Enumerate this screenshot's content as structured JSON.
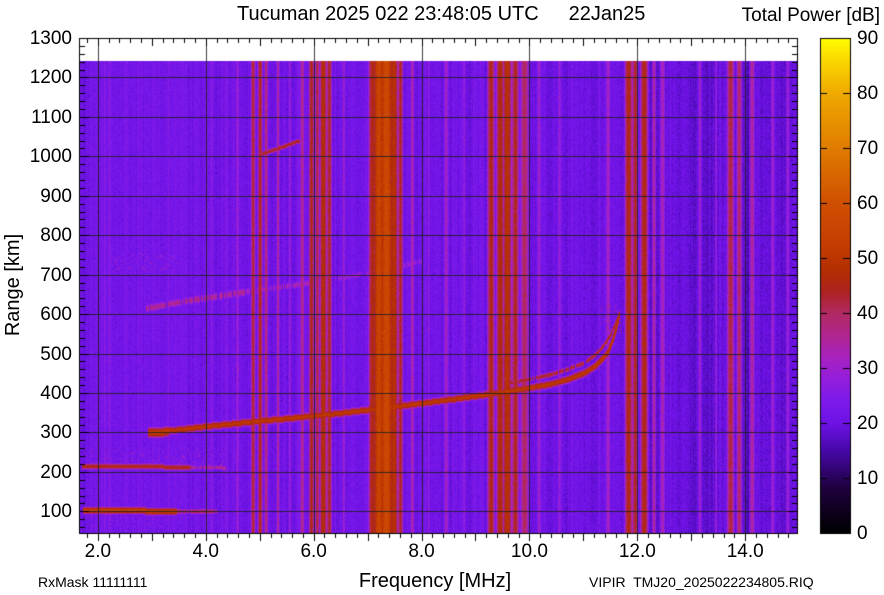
{
  "header": {
    "title": "Tucuman 2025 022 23:48:05 UTC",
    "date": "22Jan25",
    "colorbar_title": "Total Power [dB]"
  },
  "footer": {
    "rx_mask": "RxMask 11111111",
    "file_label": "VIPIR  TMJ20_2025022234805.RIQ"
  },
  "axes": {
    "x_label": "Frequency [MHz]",
    "y_label": "Range [km]"
  },
  "chart_data": {
    "type": "heatmap",
    "title": "Tucuman 2025 022 23:48:05 UTC   22Jan25",
    "xlabel": "Frequency [MHz]",
    "ylabel": "Range [km]",
    "zlabel": "Total Power [dB]",
    "x_range": [
      1.65,
      14.96
    ],
    "y_range": [
      45,
      1300
    ],
    "z_range": [
      0,
      90
    ],
    "data_top_km": 1243,
    "x_ticks": [
      {
        "label": "2.0",
        "value": 2
      },
      {
        "label": "4.0",
        "value": 4
      },
      {
        "label": "6.0",
        "value": 6
      },
      {
        "label": "8.0",
        "value": 8
      },
      {
        "label": "10.0",
        "value": 10
      },
      {
        "label": "12.0",
        "value": 12
      },
      {
        "label": "14.0",
        "value": 14
      }
    ],
    "y_ticks": [
      {
        "label": "1300",
        "value": 1300
      },
      {
        "label": "1200",
        "value": 1200
      },
      {
        "label": "1100",
        "value": 1100
      },
      {
        "label": "1000",
        "value": 1000
      },
      {
        "label": "900",
        "value": 900
      },
      {
        "label": "800",
        "value": 800
      },
      {
        "label": "700",
        "value": 700
      },
      {
        "label": "600",
        "value": 600
      },
      {
        "label": "500",
        "value": 500
      },
      {
        "label": "400",
        "value": 400
      },
      {
        "label": "300",
        "value": 300
      },
      {
        "label": "200",
        "value": 200
      },
      {
        "label": "100",
        "value": 100
      }
    ],
    "colorbar_ticks": [
      {
        "label": "90",
        "value": 90
      },
      {
        "label": "80",
        "value": 80
      },
      {
        "label": "70",
        "value": 70
      },
      {
        "label": "60",
        "value": 60
      },
      {
        "label": "50",
        "value": 50
      },
      {
        "label": "40",
        "value": 40
      },
      {
        "label": "30",
        "value": 30
      },
      {
        "label": "20",
        "value": 20
      },
      {
        "label": "10",
        "value": 10
      },
      {
        "label": "0",
        "value": 0
      }
    ],
    "x_minor_step": 0.2,
    "y_minor_step": 20,
    "colormap": [
      [
        0,
        "#000000"
      ],
      [
        8,
        "#1e013c"
      ],
      [
        15,
        "#4608a8"
      ],
      [
        20,
        "#6e12e6"
      ],
      [
        24,
        "#7d1aeb"
      ],
      [
        28,
        "#941ede"
      ],
      [
        32,
        "#a822c0"
      ],
      [
        36,
        "#b02690"
      ],
      [
        40,
        "#b22a64"
      ],
      [
        44,
        "#ad2320"
      ],
      [
        48,
        "#b43002"
      ],
      [
        52,
        "#c43c02"
      ],
      [
        60,
        "#d05002"
      ],
      [
        70,
        "#e07c00"
      ],
      [
        80,
        "#f0aa00"
      ],
      [
        86,
        "#fbd800"
      ],
      [
        90,
        "#ffff00"
      ]
    ],
    "noise": {
      "base_db": 21.4,
      "column_sigma": 0.8,
      "pixel_sigma": 1.3
    },
    "rfi_bands": [
      [
        2.12,
        0.03,
        27
      ],
      [
        2.75,
        0.02,
        26
      ],
      [
        3.3,
        0.02,
        26
      ],
      [
        4.1,
        0.025,
        28
      ],
      [
        4.58,
        0.03,
        31
      ],
      [
        4.87,
        0.03,
        44
      ],
      [
        5.0,
        0.03,
        46
      ],
      [
        5.11,
        0.025,
        40
      ],
      [
        5.33,
        0.025,
        36
      ],
      [
        5.55,
        0.02,
        31
      ],
      [
        5.78,
        0.03,
        38
      ],
      [
        5.95,
        0.035,
        46
      ],
      [
        6.06,
        0.03,
        43
      ],
      [
        6.17,
        0.045,
        49
      ],
      [
        6.28,
        0.035,
        45
      ],
      [
        6.55,
        0.02,
        32
      ],
      [
        7.08,
        0.05,
        47
      ],
      [
        7.2,
        0.07,
        56
      ],
      [
        7.34,
        0.08,
        58
      ],
      [
        7.48,
        0.05,
        50
      ],
      [
        7.6,
        0.035,
        45
      ],
      [
        7.82,
        0.03,
        35
      ],
      [
        8.12,
        0.02,
        30
      ],
      [
        8.45,
        0.03,
        33
      ],
      [
        8.78,
        0.02,
        30
      ],
      [
        9.28,
        0.05,
        46
      ],
      [
        9.45,
        0.05,
        48
      ],
      [
        9.58,
        0.055,
        50
      ],
      [
        9.73,
        0.05,
        45
      ],
      [
        9.9,
        0.06,
        41
      ],
      [
        10.17,
        0.03,
        32
      ],
      [
        10.55,
        0.03,
        30
      ],
      [
        11.45,
        0.04,
        33
      ],
      [
        11.83,
        0.05,
        47
      ],
      [
        11.95,
        0.04,
        45
      ],
      [
        12.12,
        0.05,
        47
      ],
      [
        12.3,
        0.03,
        36
      ],
      [
        12.46,
        0.04,
        34
      ],
      [
        13.15,
        0.03,
        31
      ],
      [
        13.45,
        0.02,
        30
      ],
      [
        13.72,
        0.05,
        43
      ],
      [
        13.88,
        0.04,
        40
      ],
      [
        14.12,
        0.04,
        36
      ],
      [
        14.5,
        0.03,
        32
      ],
      [
        14.78,
        0.03,
        31
      ]
    ],
    "traces": [
      {
        "name": "E-region echo",
        "db": 53,
        "half": 2.2,
        "gap": 0,
        "points": [
          [
            1.73,
            104
          ],
          [
            2.3,
            103
          ],
          [
            2.9,
            102
          ],
          [
            3.45,
            101
          ]
        ]
      },
      {
        "name": "E-region echo tail",
        "db": 42,
        "half": 1.8,
        "gap": 0.3,
        "points": [
          [
            3.45,
            101
          ],
          [
            4.2,
            100
          ]
        ]
      },
      {
        "name": "210 km echo",
        "db": 45,
        "half": 2.0,
        "gap": 0,
        "points": [
          [
            1.7,
            216
          ],
          [
            2.4,
            215
          ],
          [
            3.1,
            214
          ],
          [
            3.7,
            212
          ]
        ]
      },
      {
        "name": "210 km echo tail",
        "db": 36,
        "half": 1.8,
        "gap": 0.35,
        "points": [
          [
            3.7,
            212
          ],
          [
            4.35,
            211
          ]
        ]
      },
      {
        "name": "F2 leading blob",
        "db": 52,
        "half": 3.2,
        "gap": 0,
        "points": [
          [
            2.92,
            300
          ],
          [
            3.3,
            303
          ]
        ]
      },
      {
        "name": "F2 O-mode trace",
        "db": 50,
        "half": 2.4,
        "gap": 0,
        "points": [
          [
            2.95,
            300
          ],
          [
            3.5,
            308
          ],
          [
            4.0,
            316
          ],
          [
            4.5,
            323
          ],
          [
            5.0,
            330
          ],
          [
            5.5,
            336
          ],
          [
            6.0,
            343
          ],
          [
            6.5,
            350
          ],
          [
            7.0,
            358
          ],
          [
            7.5,
            366
          ],
          [
            8.0,
            375
          ],
          [
            8.5,
            384
          ],
          [
            9.0,
            393
          ],
          [
            9.5,
            403
          ],
          [
            10.0,
            414
          ],
          [
            10.4,
            424
          ],
          [
            10.7,
            435
          ],
          [
            11.0,
            451
          ],
          [
            11.2,
            468
          ],
          [
            11.35,
            488
          ],
          [
            11.45,
            505
          ],
          [
            11.55,
            540
          ],
          [
            11.62,
            575
          ],
          [
            11.66,
            600
          ]
        ]
      },
      {
        "name": "F2 X-mode trace",
        "db": 44,
        "half": 1.8,
        "gap": 0.4,
        "points": [
          [
            9.5,
            424
          ],
          [
            10.0,
            436
          ],
          [
            10.4,
            448
          ],
          [
            10.7,
            461
          ],
          [
            11.0,
            477
          ],
          [
            11.2,
            496
          ],
          [
            11.35,
            518
          ],
          [
            11.5,
            548
          ],
          [
            11.6,
            582
          ],
          [
            11.66,
            605
          ]
        ]
      },
      {
        "name": "second hop a",
        "db": 36,
        "half": 3.2,
        "gap": 0.45,
        "points": [
          [
            2.9,
            615
          ],
          [
            3.3,
            626
          ],
          [
            3.8,
            638
          ],
          [
            4.3,
            648
          ],
          [
            4.7,
            657
          ]
        ]
      },
      {
        "name": "second hop b",
        "db": 33,
        "half": 3.0,
        "gap": 0.55,
        "points": [
          [
            4.7,
            657
          ],
          [
            5.2,
            666
          ],
          [
            5.7,
            676
          ],
          [
            6.2,
            687
          ]
        ]
      },
      {
        "name": "second hop c",
        "db": 30,
        "half": 3.0,
        "gap": 0.62,
        "points": [
          [
            6.2,
            687
          ],
          [
            6.8,
            700
          ],
          [
            7.4,
            716
          ],
          [
            8.0,
            736
          ]
        ]
      },
      {
        "name": "third hop",
        "db": 44,
        "half": 1.8,
        "gap": 0.12,
        "points": [
          [
            5.05,
            1008
          ],
          [
            5.4,
            1024
          ],
          [
            5.72,
            1040
          ]
        ]
      }
    ],
    "patches": [
      {
        "name": "spread above 210 km",
        "f": [
          1.75,
          4.35
        ],
        "km": [
          218,
          258
        ],
        "db": 29,
        "density": 0.1
      },
      {
        "name": "low range speckle",
        "f": [
          1.7,
          3.2
        ],
        "km": [
          55,
          95
        ],
        "db": 27,
        "density": 0.07
      },
      {
        "name": "spread 720 km",
        "f": [
          2.25,
          3.45
        ],
        "km": [
          706,
          756
        ],
        "db": 29,
        "density": 0.13
      },
      {
        "name": "spread near foF2 top",
        "f": [
          11.3,
          11.7
        ],
        "km": [
          555,
          625
        ],
        "db": 38,
        "density": 0.07
      }
    ]
  }
}
